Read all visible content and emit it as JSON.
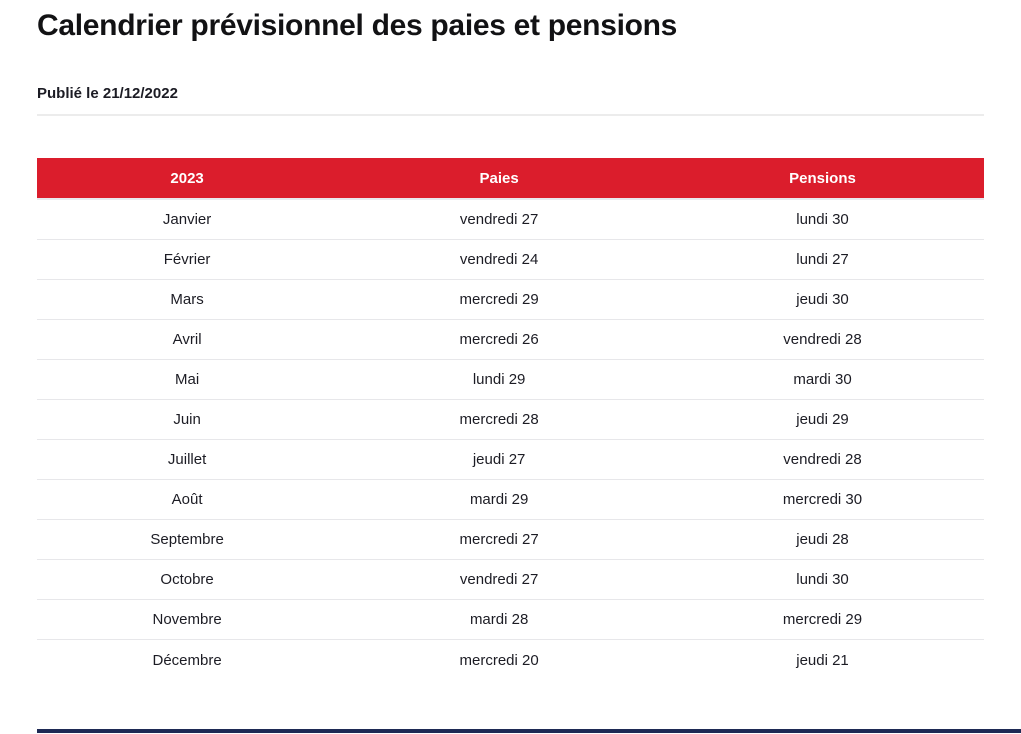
{
  "page": {
    "title": "Calendrier prévisionnel des paies et pensions",
    "published_label": "Publié le 21/12/2022"
  },
  "colors": {
    "header_red": "#DB1D2C",
    "footer_navy": "#1E2A55",
    "row_border": "#E7E7EA",
    "divider": "#ECECEC",
    "body_text": "#1C1C24",
    "title_text": "#121214",
    "header_text": "#FFFFFF"
  },
  "table": {
    "columns": [
      "2023",
      "Paies",
      "Pensions"
    ],
    "rows": [
      {
        "month": "Janvier",
        "paies": "vendredi 27",
        "pensions": "lundi 30"
      },
      {
        "month": "Février",
        "paies": "vendredi 24",
        "pensions": "lundi 27"
      },
      {
        "month": "Mars",
        "paies": "mercredi 29",
        "pensions": "jeudi 30"
      },
      {
        "month": "Avril",
        "paies": "mercredi 26",
        "pensions": "vendredi 28"
      },
      {
        "month": "Mai",
        "paies": "lundi 29",
        "pensions": "mardi 30"
      },
      {
        "month": "Juin",
        "paies": "mercredi 28",
        "pensions": "jeudi 29"
      },
      {
        "month": "Juillet",
        "paies": "jeudi 27",
        "pensions": "vendredi 28"
      },
      {
        "month": "Août",
        "paies": "mardi 29",
        "pensions": "mercredi 30"
      },
      {
        "month": "Septembre",
        "paies": "mercredi 27",
        "pensions": "jeudi 28"
      },
      {
        "month": "Octobre",
        "paies": "vendredi 27",
        "pensions": "lundi 30"
      },
      {
        "month": "Novembre",
        "paies": "mardi 28",
        "pensions": "mercredi 29"
      },
      {
        "month": "Décembre",
        "paies": "mercredi 20",
        "pensions": "jeudi 21"
      }
    ]
  }
}
